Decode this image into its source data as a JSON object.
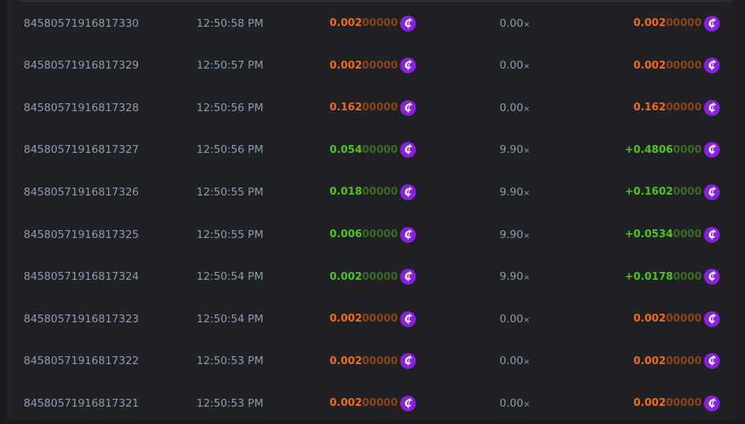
{
  "currency_icon": "coin-icon",
  "colors": {
    "loss": "#f26b12",
    "win": "#4fc51a",
    "coin": "#8a1fe0"
  },
  "rows": [
    {
      "id": "84580571916817330",
      "time": "12:50:58 PM",
      "amount_hi": "0.002",
      "amount_lo": "00000",
      "multiplier": "0.00",
      "mult_suffix": "×",
      "payout_hi": "0.002",
      "payout_lo": "00000",
      "result": "loss"
    },
    {
      "id": "84580571916817329",
      "time": "12:50:57 PM",
      "amount_hi": "0.002",
      "amount_lo": "00000",
      "multiplier": "0.00",
      "mult_suffix": "×",
      "payout_hi": "0.002",
      "payout_lo": "00000",
      "result": "loss"
    },
    {
      "id": "84580571916817328",
      "time": "12:50:56 PM",
      "amount_hi": "0.162",
      "amount_lo": "00000",
      "multiplier": "0.00",
      "mult_suffix": "×",
      "payout_hi": "0.162",
      "payout_lo": "00000",
      "result": "loss"
    },
    {
      "id": "84580571916817327",
      "time": "12:50:56 PM",
      "amount_hi": "0.054",
      "amount_lo": "00000",
      "multiplier": "9.90",
      "mult_suffix": "×",
      "payout_hi": "+0.4806",
      "payout_lo": "0000",
      "result": "win"
    },
    {
      "id": "84580571916817326",
      "time": "12:50:55 PM",
      "amount_hi": "0.018",
      "amount_lo": "00000",
      "multiplier": "9.90",
      "mult_suffix": "×",
      "payout_hi": "+0.1602",
      "payout_lo": "0000",
      "result": "win"
    },
    {
      "id": "84580571916817325",
      "time": "12:50:55 PM",
      "amount_hi": "0.006",
      "amount_lo": "00000",
      "multiplier": "9.90",
      "mult_suffix": "×",
      "payout_hi": "+0.0534",
      "payout_lo": "0000",
      "result": "win"
    },
    {
      "id": "84580571916817324",
      "time": "12:50:54 PM",
      "amount_hi": "0.002",
      "amount_lo": "00000",
      "multiplier": "9.90",
      "mult_suffix": "×",
      "payout_hi": "+0.0178",
      "payout_lo": "0000",
      "result": "win"
    },
    {
      "id": "84580571916817323",
      "time": "12:50:54 PM",
      "amount_hi": "0.002",
      "amount_lo": "00000",
      "multiplier": "0.00",
      "mult_suffix": "×",
      "payout_hi": "0.002",
      "payout_lo": "00000",
      "result": "loss"
    },
    {
      "id": "84580571916817322",
      "time": "12:50:53 PM",
      "amount_hi": "0.002",
      "amount_lo": "00000",
      "multiplier": "0.00",
      "mult_suffix": "×",
      "payout_hi": "0.002",
      "payout_lo": "00000",
      "result": "loss"
    },
    {
      "id": "84580571916817321",
      "time": "12:50:53 PM",
      "amount_hi": "0.002",
      "amount_lo": "00000",
      "multiplier": "0.00",
      "mult_suffix": "×",
      "payout_hi": "0.002",
      "payout_lo": "00000",
      "result": "loss"
    }
  ]
}
